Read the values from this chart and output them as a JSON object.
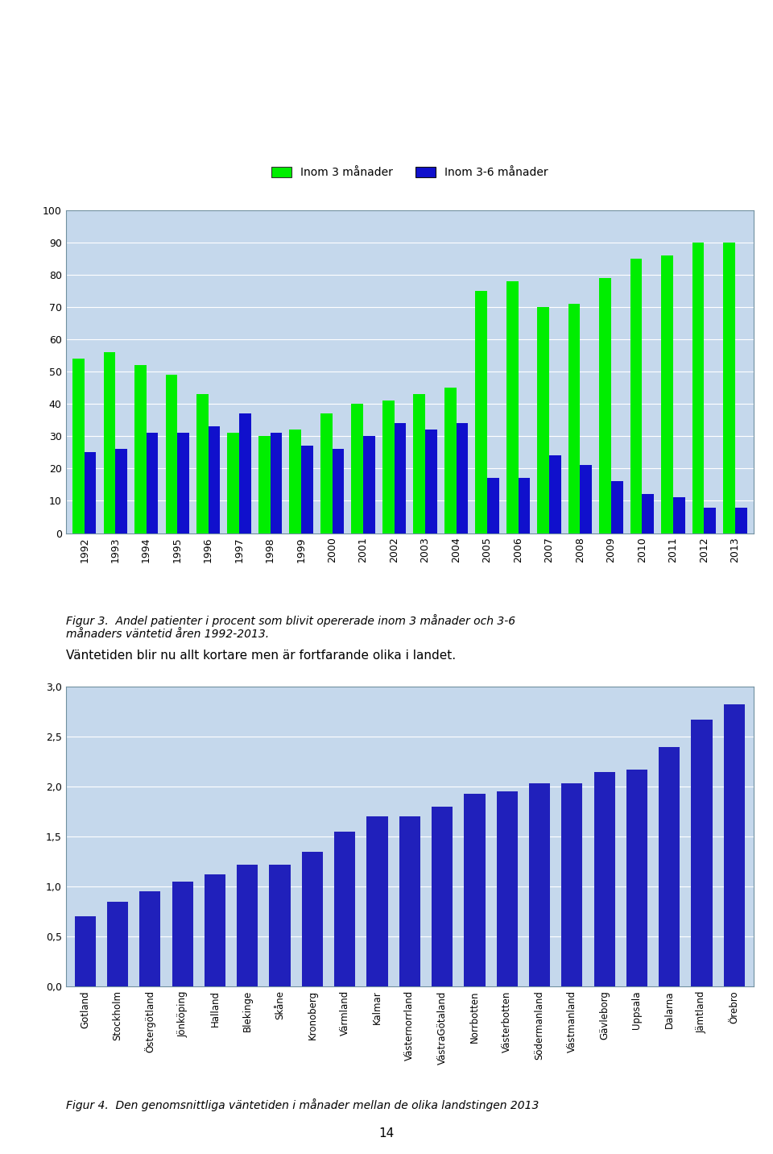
{
  "chart1": {
    "years": [
      1992,
      1993,
      1994,
      1995,
      1996,
      1997,
      1998,
      1999,
      2000,
      2001,
      2002,
      2003,
      2004,
      2005,
      2006,
      2007,
      2008,
      2009,
      2010,
      2011,
      2012,
      2013
    ],
    "green_values": [
      54,
      56,
      52,
      49,
      43,
      31,
      30,
      32,
      37,
      40,
      41,
      43,
      45,
      75,
      78,
      70,
      71,
      79,
      85,
      86,
      90,
      90
    ],
    "blue_values": [
      25,
      26,
      31,
      31,
      33,
      37,
      31,
      27,
      26,
      30,
      34,
      32,
      34,
      17,
      17,
      24,
      21,
      16,
      12,
      11,
      8,
      8
    ],
    "ylim": [
      0,
      100
    ],
    "yticks": [
      0,
      10,
      20,
      30,
      40,
      50,
      60,
      70,
      80,
      90,
      100
    ],
    "green_color": "#00EE00",
    "blue_color": "#1010CC",
    "legend_green": "Inom 3 månader",
    "legend_blue": "Inom 3-6 månader",
    "plot_area_bg": "#C5D8EC"
  },
  "fig3_caption": "Figur 3.  Andel patienter i procent som blivit opererade inom 3 månader och 3-6\nmånaders väntetid åren 1992-2013.",
  "text_between": "Väntetiden blir nu allt kortare men är fortfarande olika i landet.",
  "chart2": {
    "categories": [
      "Gotland",
      "Stockholm",
      "Östergötland",
      "Jönköping",
      "Halland",
      "Blekinge",
      "Skåne",
      "Kronoberg",
      "Värmland",
      "Kalmar",
      "Västernorrland",
      "VästraGötaland",
      "Norrbotten",
      "Västerbotten",
      "Södermanland",
      "Västmanland",
      "Gävleborg",
      "Uppsala",
      "Dalarna",
      "Jämtland",
      "Örebro"
    ],
    "values": [
      0.7,
      0.85,
      0.95,
      1.05,
      1.12,
      1.22,
      1.22,
      1.35,
      1.55,
      1.7,
      1.7,
      1.8,
      1.93,
      1.95,
      2.03,
      2.03,
      2.15,
      2.17,
      2.4,
      2.67,
      2.82
    ],
    "ylim": [
      0,
      3.0
    ],
    "yticks": [
      0.0,
      0.5,
      1.0,
      1.5,
      2.0,
      2.5,
      3.0
    ],
    "bar_color": "#2020BB",
    "plot_area_bg": "#C5D8EC"
  },
  "fig4_caption": "Figur 4.  Den genomsnittliga väntetiden i månader mellan de olika landstingen 2013",
  "page_number": "14",
  "outer_bg": "#FFFFFF",
  "legend_box_bg": "#D8D8D8",
  "chart_border_color": "#7090A0"
}
